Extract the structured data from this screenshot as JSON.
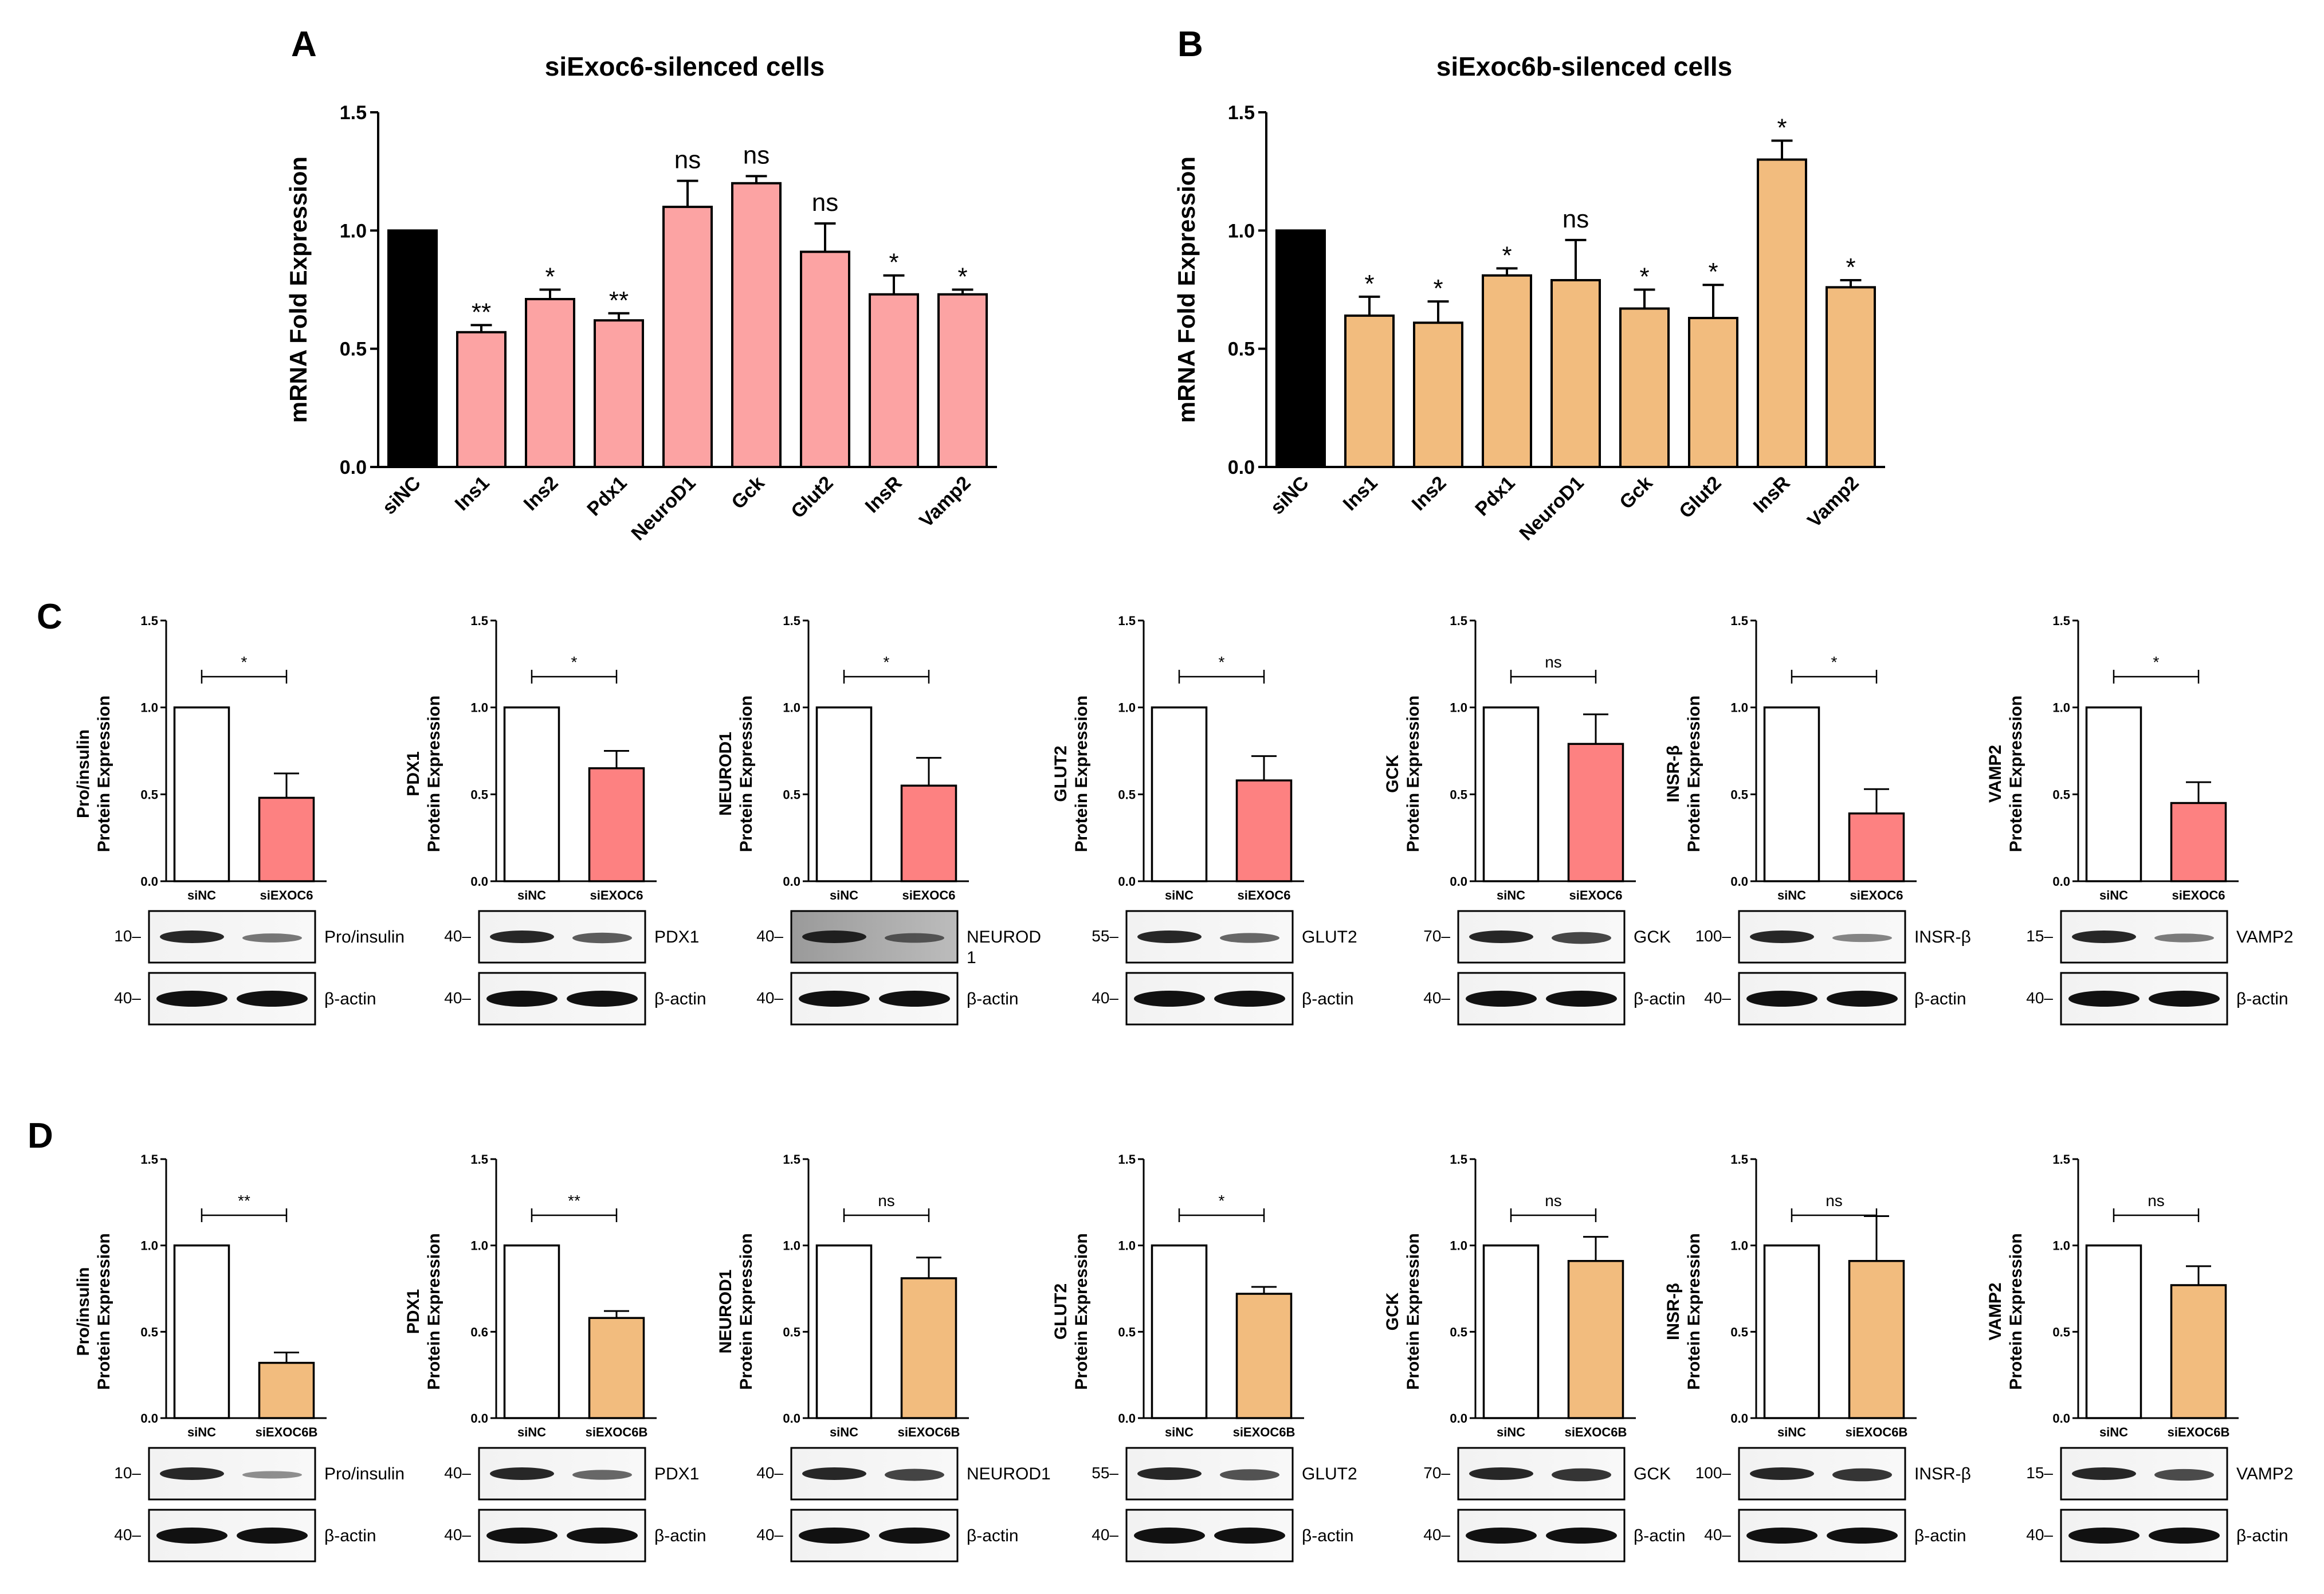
{
  "colors": {
    "control": "#000000",
    "exoc6": "#fca3a3",
    "exoc6b": "#f2bc7e",
    "exoc6_protein": "#fd8181",
    "exoc6b_protein": "#f2bc7e",
    "white": "#ffffff"
  },
  "panels": {
    "A": {
      "letter": "A",
      "title": "siExoc6-silenced cells"
    },
    "B": {
      "letter": "B",
      "title": "siExoc6b-silenced cells"
    },
    "C": {
      "letter": "C"
    },
    "D": {
      "letter": "D"
    }
  },
  "chart_data": [
    {
      "id": "A",
      "type": "bar",
      "title": "siExoc6-silenced cells",
      "ylabel": "mRNA Fold Expression",
      "ylim": [
        0,
        1.5
      ],
      "yticks": [
        "0.0",
        "0.5",
        "1.0",
        "1.5"
      ],
      "categories": [
        "siNC",
        "Ins1",
        "Ins2",
        "Pdx1",
        "NeuroD1",
        "Gck",
        "Glut2",
        "InsR",
        "Vamp2"
      ],
      "values": [
        1.0,
        0.57,
        0.71,
        0.62,
        1.1,
        1.2,
        0.91,
        0.73,
        0.73
      ],
      "errors": [
        0,
        0.03,
        0.04,
        0.03,
        0.11,
        0.03,
        0.12,
        0.08,
        0.02
      ],
      "significance": [
        "",
        "**",
        "*",
        "**",
        "ns",
        "ns",
        "ns",
        "*",
        "*"
      ]
    },
    {
      "id": "B",
      "type": "bar",
      "title": "siExoc6b-silenced cells",
      "ylabel": "mRNA Fold Expression",
      "ylim": [
        0,
        1.5
      ],
      "yticks": [
        "0.0",
        "0.5",
        "1.0",
        "1.5"
      ],
      "categories": [
        "siNC",
        "Ins1",
        "Ins2",
        "Pdx1",
        "NeuroD1",
        "Gck",
        "Glut2",
        "InsR",
        "Vamp2"
      ],
      "values": [
        1.0,
        0.64,
        0.61,
        0.81,
        0.79,
        0.67,
        0.63,
        1.3,
        0.76
      ],
      "errors": [
        0,
        0.08,
        0.09,
        0.03,
        0.17,
        0.08,
        0.14,
        0.08,
        0.03
      ],
      "significance": [
        "",
        "*",
        "*",
        "*",
        "ns",
        "*",
        "*",
        "*",
        "*"
      ]
    },
    {
      "id": "C1",
      "type": "bar",
      "ylabel": "Pro/insulin\nProtein Expression",
      "ylim": [
        0,
        1.5
      ],
      "yticks": [
        "0.0",
        "0.5",
        "1.0",
        "1.5"
      ],
      "categories": [
        "siNC",
        "siEXOC6"
      ],
      "values": [
        1.0,
        0.48
      ],
      "errors": [
        0,
        0.14
      ],
      "significance": "*",
      "blot": {
        "target": "Pro/insulin",
        "target_mw": "10",
        "actin": "β-actin",
        "actin_mw": "40"
      }
    },
    {
      "id": "C2",
      "type": "bar",
      "ylabel": "PDX1\nProtein Expression",
      "ylim": [
        0,
        1.5
      ],
      "yticks": [
        "0.0",
        "0.5",
        "1.0",
        "1.5"
      ],
      "categories": [
        "siNC",
        "siEXOC6"
      ],
      "values": [
        1.0,
        0.65
      ],
      "errors": [
        0,
        0.1
      ],
      "significance": "*",
      "blot": {
        "target": "PDX1",
        "target_mw": "40",
        "actin": "β-actin",
        "actin_mw": "40"
      }
    },
    {
      "id": "C3",
      "type": "bar",
      "ylabel": "NEUROD1\nProtein Expression",
      "ylim": [
        0,
        1.5
      ],
      "yticks": [
        "0.0",
        "0.5",
        "1.0",
        "1.5"
      ],
      "categories": [
        "siNC",
        "siEXOC6"
      ],
      "values": [
        1.0,
        0.55
      ],
      "errors": [
        0,
        0.16
      ],
      "significance": "*",
      "blot": {
        "target": "NEUROD\n1",
        "target_mw": "40",
        "actin": "β-actin",
        "actin_mw": "40"
      }
    },
    {
      "id": "C4",
      "type": "bar",
      "ylabel": "GLUT2\nProtein Expression",
      "ylim": [
        0,
        1.5
      ],
      "yticks": [
        "0.0",
        "0.5",
        "1.0",
        "1.5"
      ],
      "categories": [
        "siNC",
        "siEXOC6"
      ],
      "values": [
        1.0,
        0.58
      ],
      "errors": [
        0,
        0.14
      ],
      "significance": "*",
      "blot": {
        "target": "GLUT2",
        "target_mw": "55",
        "actin": "β-actin",
        "actin_mw": "40"
      }
    },
    {
      "id": "C5",
      "type": "bar",
      "ylabel": "GCK\nProtein Expression",
      "ylim": [
        0,
        1.5
      ],
      "yticks": [
        "0.0",
        "0.5",
        "1.0",
        "1.5"
      ],
      "categories": [
        "siNC",
        "siEXOC6"
      ],
      "values": [
        1.0,
        0.79
      ],
      "errors": [
        0,
        0.17
      ],
      "significance": "ns",
      "blot": {
        "target": "GCK",
        "target_mw": "70",
        "actin": "β-actin",
        "actin_mw": "40"
      }
    },
    {
      "id": "C6",
      "type": "bar",
      "ylabel": "INSR-β\nProtein Expression",
      "ylim": [
        0,
        1.5
      ],
      "yticks": [
        "0.0",
        "0.5",
        "1.0",
        "1.5"
      ],
      "categories": [
        "siNC",
        "siEXOC6"
      ],
      "values": [
        1.0,
        0.39
      ],
      "errors": [
        0,
        0.14
      ],
      "significance": "*",
      "blot": {
        "target": "INSR-β",
        "target_mw": "100",
        "actin": "β-actin",
        "actin_mw": "40"
      }
    },
    {
      "id": "C7",
      "type": "bar",
      "ylabel": "VAMP2\nProtein Expression",
      "ylim": [
        0,
        1.5
      ],
      "yticks": [
        "0.0",
        "0.5",
        "1.0",
        "1.5"
      ],
      "categories": [
        "siNC",
        "siEXOC6"
      ],
      "values": [
        1.0,
        0.45
      ],
      "errors": [
        0,
        0.12
      ],
      "significance": "*",
      "blot": {
        "target": "VAMP2",
        "target_mw": "15",
        "actin": "β-actin",
        "actin_mw": "40"
      }
    },
    {
      "id": "D1",
      "type": "bar",
      "ylabel": "Pro/insulin\nProtein Expression",
      "ylim": [
        0,
        1.5
      ],
      "yticks": [
        "0.0",
        "0.5",
        "1.0",
        "1.5"
      ],
      "categories": [
        "siNC",
        "siEXOC6B"
      ],
      "values": [
        1.0,
        0.32
      ],
      "errors": [
        0,
        0.06
      ],
      "significance": "**",
      "blot": {
        "target": "Pro/insulin",
        "target_mw": "10",
        "actin": "β-actin",
        "actin_mw": "40"
      }
    },
    {
      "id": "D2",
      "type": "bar",
      "ylabel": "PDX1\nProtein Expression",
      "ylim": [
        0,
        1.5
      ],
      "yticks": [
        "0.0",
        "0.6",
        "1.0",
        "1.5"
      ],
      "categories": [
        "siNC",
        "siEXOC6B"
      ],
      "values": [
        1.0,
        0.58
      ],
      "errors": [
        0,
        0.04
      ],
      "significance": "**",
      "blot": {
        "target": "PDX1",
        "target_mw": "40",
        "actin": "β-actin",
        "actin_mw": "40"
      }
    },
    {
      "id": "D3",
      "type": "bar",
      "ylabel": "NEUROD1\nProtein Expression",
      "ylim": [
        0,
        1.5
      ],
      "yticks": [
        "0.0",
        "0.5",
        "1.0",
        "1.5"
      ],
      "categories": [
        "siNC",
        "siEXOC6B"
      ],
      "values": [
        1.0,
        0.81
      ],
      "errors": [
        0,
        0.12
      ],
      "significance": "ns",
      "blot": {
        "target": "NEUROD1",
        "target_mw": "40",
        "actin": "β-actin",
        "actin_mw": "40"
      }
    },
    {
      "id": "D4",
      "type": "bar",
      "ylabel": "GLUT2\nProtein Expression",
      "ylim": [
        0,
        1.5
      ],
      "yticks": [
        "0.0",
        "0.5",
        "1.0",
        "1.5"
      ],
      "categories": [
        "siNC",
        "siEXOC6B"
      ],
      "values": [
        1.0,
        0.72
      ],
      "errors": [
        0,
        0.04
      ],
      "significance": "*",
      "blot": {
        "target": "GLUT2",
        "target_mw": "55",
        "actin": "β-actin",
        "actin_mw": "40"
      }
    },
    {
      "id": "D5",
      "type": "bar",
      "ylabel": "GCK\nProtein Expression",
      "ylim": [
        0,
        1.5
      ],
      "yticks": [
        "0.0",
        "0.5",
        "1.0",
        "1.5"
      ],
      "categories": [
        "siNC",
        "siEXOC6B"
      ],
      "values": [
        1.0,
        0.91
      ],
      "errors": [
        0,
        0.14
      ],
      "significance": "ns",
      "blot": {
        "target": "GCK",
        "target_mw": "70",
        "actin": "β-actin",
        "actin_mw": "40"
      }
    },
    {
      "id": "D6",
      "type": "bar",
      "ylabel": "INSR-β\nProtein Expression",
      "ylim": [
        0,
        1.5
      ],
      "yticks": [
        "0.0",
        "0.5",
        "1.0",
        "1.5"
      ],
      "categories": [
        "siNC",
        "siEXOC6B"
      ],
      "values": [
        1.0,
        0.91
      ],
      "errors": [
        0,
        0.26
      ],
      "significance": "ns",
      "blot": {
        "target": "INSR-β",
        "target_mw": "100",
        "actin": "β-actin",
        "actin_mw": "40"
      }
    },
    {
      "id": "D7",
      "type": "bar",
      "ylabel": "VAMP2\nProtein Expression",
      "ylim": [
        0,
        1.5
      ],
      "yticks": [
        "0.0",
        "0.5",
        "1.0",
        "1.5"
      ],
      "categories": [
        "siNC",
        "siEXOC6B"
      ],
      "values": [
        1.0,
        0.77
      ],
      "errors": [
        0,
        0.11
      ],
      "significance": "ns",
      "blot": {
        "target": "VAMP2",
        "target_mw": "15",
        "actin": "β-actin",
        "actin_mw": "40"
      }
    }
  ]
}
